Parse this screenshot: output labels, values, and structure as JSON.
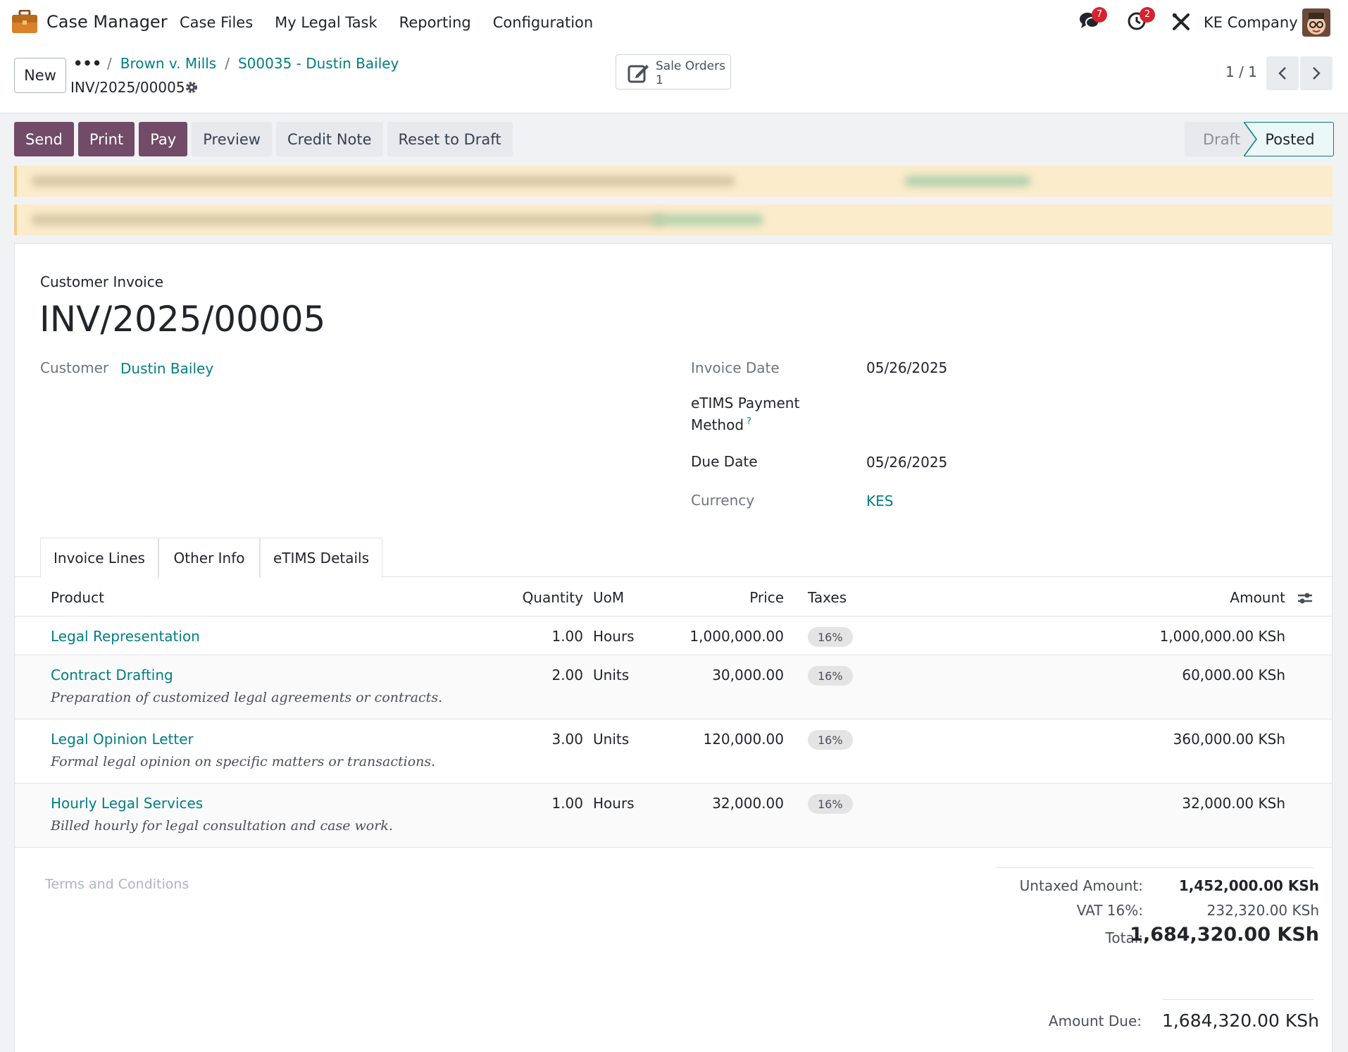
{
  "topbar": {
    "app_name": "Case Manager",
    "menu": [
      "Case Files",
      "My Legal Task",
      "Reporting",
      "Configuration"
    ],
    "messages_badge": "7",
    "activities_badge": "2",
    "company": "KE Company"
  },
  "control": {
    "new_label": "New",
    "breadcrumb": [
      "Brown v. Mills",
      "S00035 - Dustin Bailey"
    ],
    "record_name": "INV/2025/00005",
    "smart_button": {
      "label": "Sale Orders",
      "count": "1"
    },
    "pager": "1 / 1"
  },
  "actions": [
    "Send",
    "Print",
    "Pay",
    "Preview",
    "Credit Note",
    "Reset to Draft"
  ],
  "status": {
    "steps": [
      "Draft",
      "Posted"
    ],
    "current": "Posted"
  },
  "invoice": {
    "type": "Customer Invoice",
    "name": "INV/2025/00005",
    "customer_label": "Customer",
    "customer": "Dustin Bailey",
    "invoice_date_label": "Invoice Date",
    "invoice_date": "05/26/2025",
    "payment_method_label_1": "eTIMS Payment",
    "payment_method_label_2": "Method",
    "payment_method_help": "?",
    "due_date_label": "Due Date",
    "due_date": "05/26/2025",
    "currency_label": "Currency",
    "currency": "KES"
  },
  "tabs": [
    "Invoice Lines",
    "Other Info",
    "eTIMS Details"
  ],
  "lines_header": {
    "product": "Product",
    "quantity": "Quantity",
    "uom": "UoM",
    "price": "Price",
    "taxes": "Taxes",
    "amount": "Amount"
  },
  "lines": [
    {
      "product": "Legal Representation",
      "description": "",
      "quantity": "1.00",
      "uom": "Hours",
      "price": "1,000,000.00",
      "tax": "16%",
      "amount": "1,000,000.00 KSh"
    },
    {
      "product": "Contract Drafting",
      "description": "Preparation of customized legal agreements or contracts.",
      "quantity": "2.00",
      "uom": "Units",
      "price": "30,000.00",
      "tax": "16%",
      "amount": "60,000.00 KSh"
    },
    {
      "product": "Legal Opinion Letter",
      "description": "Formal legal opinion on specific matters or transactions.",
      "quantity": "3.00",
      "uom": "Units",
      "price": "120,000.00",
      "tax": "16%",
      "amount": "360,000.00 KSh"
    },
    {
      "product": "Hourly Legal Services",
      "description": "Billed hourly for legal consultation and case work.",
      "quantity": "1.00",
      "uom": "Hours",
      "price": "32,000.00",
      "tax": "16%",
      "amount": "32,000.00 KSh"
    }
  ],
  "footer": {
    "terms_placeholder": "Terms and Conditions",
    "untaxed_label": "Untaxed Amount:",
    "untaxed": "1,452,000.00 KSh",
    "vat_label": "VAT 16%:",
    "vat": "232,320.00 KSh",
    "total_label": "Total:",
    "total": "1,684,320.00 KSh",
    "due_label": "Amount Due:",
    "due": "1,684,320.00 KSh"
  },
  "colors": {
    "brand": "#714b67",
    "link": "#017e84",
    "alert_bg": "#fbeccb"
  }
}
